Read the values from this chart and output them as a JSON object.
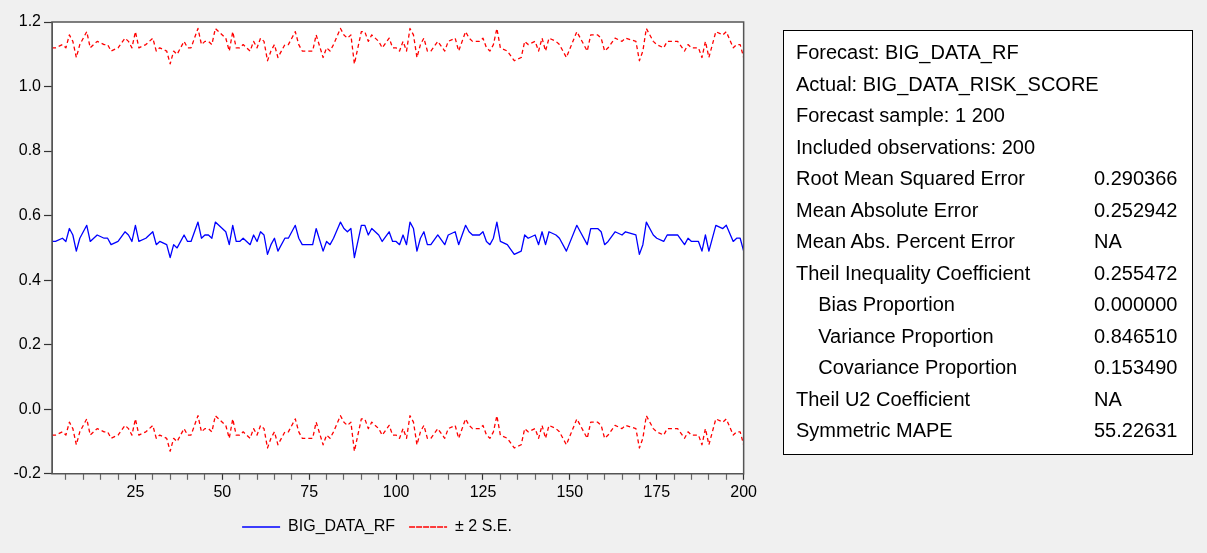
{
  "chart_data": [
    {
      "type": "line",
      "x": [
        1,
        2,
        4,
        5,
        6,
        7,
        8,
        9,
        11,
        12,
        13,
        14,
        16,
        17,
        18,
        20,
        22,
        23,
        24,
        25,
        26,
        28,
        30,
        31,
        32,
        34,
        35,
        36,
        37,
        39,
        40,
        41,
        43,
        44,
        45,
        46,
        47,
        48,
        50,
        51,
        52,
        53,
        54,
        55,
        56,
        58,
        59,
        60,
        61,
        62,
        63,
        64,
        65,
        66,
        68,
        69,
        71,
        72,
        73,
        76,
        77,
        79,
        80,
        81,
        82,
        84,
        85,
        86,
        87,
        88,
        90,
        91,
        92,
        93,
        95,
        96,
        98,
        99,
        100,
        101,
        102,
        103,
        104,
        105,
        106,
        107,
        108,
        109,
        110,
        112,
        114,
        115,
        117,
        118,
        120,
        121,
        122,
        123,
        124,
        125,
        126,
        127,
        128,
        129,
        130,
        132,
        134,
        136,
        137,
        138,
        140,
        141,
        142,
        143,
        144,
        146,
        147,
        149,
        152,
        153,
        155,
        156,
        157,
        158,
        159,
        160,
        161,
        163,
        165,
        166,
        169,
        170,
        171,
        172,
        174,
        175,
        177,
        178,
        180,
        181,
        183,
        184,
        185,
        187,
        188,
        189,
        190,
        192,
        194,
        195,
        197,
        198,
        199,
        200
      ],
      "series": [
        {
          "name": "BIG_DATA_RF",
          "color": "#0000ff",
          "line_style": "solid",
          "values": [
            0.52,
            0.52,
            0.53,
            0.52,
            0.56,
            0.54,
            0.49,
            0.53,
            0.57,
            0.52,
            0.53,
            0.54,
            0.53,
            0.53,
            0.51,
            0.52,
            0.55,
            0.54,
            0.52,
            0.57,
            0.52,
            0.53,
            0.55,
            0.51,
            0.52,
            0.51,
            0.47,
            0.51,
            0.5,
            0.54,
            0.52,
            0.52,
            0.58,
            0.53,
            0.54,
            0.54,
            0.53,
            0.58,
            0.56,
            0.55,
            0.51,
            0.57,
            0.52,
            0.52,
            0.53,
            0.51,
            0.54,
            0.52,
            0.55,
            0.54,
            0.48,
            0.51,
            0.53,
            0.49,
            0.53,
            0.53,
            0.57,
            0.53,
            0.51,
            0.51,
            0.56,
            0.49,
            0.52,
            0.51,
            0.53,
            0.58,
            0.56,
            0.55,
            0.56,
            0.47,
            0.57,
            0.57,
            0.54,
            0.56,
            0.54,
            0.52,
            0.55,
            0.52,
            0.52,
            0.51,
            0.54,
            0.51,
            0.58,
            0.56,
            0.49,
            0.53,
            0.55,
            0.51,
            0.51,
            0.54,
            0.51,
            0.54,
            0.55,
            0.51,
            0.57,
            0.55,
            0.54,
            0.54,
            0.54,
            0.55,
            0.52,
            0.51,
            0.53,
            0.58,
            0.52,
            0.51,
            0.48,
            0.49,
            0.54,
            0.53,
            0.54,
            0.51,
            0.55,
            0.51,
            0.55,
            0.54,
            0.53,
            0.49,
            0.57,
            0.55,
            0.51,
            0.56,
            0.56,
            0.56,
            0.55,
            0.51,
            0.52,
            0.55,
            0.54,
            0.55,
            0.54,
            0.48,
            0.51,
            0.58,
            0.54,
            0.53,
            0.52,
            0.54,
            0.54,
            0.54,
            0.51,
            0.53,
            0.52,
            0.52,
            0.49,
            0.54,
            0.49,
            0.57,
            0.56,
            0.57,
            0.52,
            0.53,
            0.53,
            0.49
          ]
        },
        {
          "name": "± 2 S.E.",
          "color": "#ff0000",
          "line_style": "dashed",
          "values": [
            1.12,
            1.12,
            1.13,
            1.12,
            1.16,
            1.14,
            1.09,
            1.13,
            1.17,
            1.12,
            1.13,
            1.14,
            1.13,
            1.13,
            1.11,
            1.12,
            1.15,
            1.14,
            1.12,
            1.17,
            1.12,
            1.13,
            1.15,
            1.11,
            1.12,
            1.11,
            1.07,
            1.11,
            1.1,
            1.14,
            1.12,
            1.12,
            1.18,
            1.13,
            1.14,
            1.14,
            1.13,
            1.18,
            1.16,
            1.15,
            1.11,
            1.17,
            1.12,
            1.12,
            1.13,
            1.11,
            1.14,
            1.12,
            1.15,
            1.14,
            1.08,
            1.11,
            1.13,
            1.09,
            1.13,
            1.13,
            1.17,
            1.13,
            1.11,
            1.11,
            1.16,
            1.09,
            1.12,
            1.11,
            1.13,
            1.18,
            1.16,
            1.15,
            1.16,
            1.07,
            1.17,
            1.17,
            1.14,
            1.16,
            1.14,
            1.12,
            1.15,
            1.12,
            1.12,
            1.11,
            1.14,
            1.11,
            1.18,
            1.16,
            1.09,
            1.13,
            1.15,
            1.11,
            1.11,
            1.14,
            1.11,
            1.14,
            1.15,
            1.11,
            1.17,
            1.15,
            1.14,
            1.14,
            1.14,
            1.15,
            1.12,
            1.11,
            1.13,
            1.18,
            1.12,
            1.11,
            1.08,
            1.09,
            1.14,
            1.13,
            1.14,
            1.11,
            1.15,
            1.11,
            1.15,
            1.14,
            1.13,
            1.09,
            1.17,
            1.15,
            1.11,
            1.16,
            1.16,
            1.16,
            1.15,
            1.11,
            1.12,
            1.15,
            1.14,
            1.15,
            1.14,
            1.08,
            1.11,
            1.18,
            1.14,
            1.13,
            1.12,
            1.14,
            1.14,
            1.14,
            1.11,
            1.13,
            1.12,
            1.12,
            1.09,
            1.14,
            1.09,
            1.17,
            1.16,
            1.17,
            1.12,
            1.13,
            1.13,
            1.09
          ]
        },
        {
          "color": "#ff0000",
          "line_style": "dashed",
          "values": [
            -0.08,
            -0.08,
            -0.07,
            -0.08,
            -0.04,
            -0.06,
            -0.11,
            -0.07,
            -0.03,
            -0.08,
            -0.07,
            -0.06,
            -0.07,
            -0.07,
            -0.09,
            -0.08,
            -0.05,
            -0.06,
            -0.08,
            -0.03,
            -0.08,
            -0.07,
            -0.05,
            -0.09,
            -0.08,
            -0.09,
            -0.13,
            -0.09,
            -0.1,
            -0.06,
            -0.08,
            -0.08,
            -0.02,
            -0.07,
            -0.06,
            -0.06,
            -0.07,
            -0.02,
            -0.04,
            -0.05,
            -0.09,
            -0.03,
            -0.08,
            -0.08,
            -0.07,
            -0.09,
            -0.06,
            -0.08,
            -0.05,
            -0.06,
            -0.12,
            -0.09,
            -0.07,
            -0.11,
            -0.07,
            -0.07,
            -0.03,
            -0.07,
            -0.09,
            -0.09,
            -0.04,
            -0.11,
            -0.08,
            -0.09,
            -0.07,
            -0.02,
            -0.04,
            -0.05,
            -0.04,
            -0.13,
            -0.03,
            -0.03,
            -0.06,
            -0.04,
            -0.06,
            -0.08,
            -0.05,
            -0.08,
            -0.08,
            -0.09,
            -0.06,
            -0.09,
            -0.02,
            -0.04,
            -0.11,
            -0.07,
            -0.05,
            -0.09,
            -0.09,
            -0.06,
            -0.09,
            -0.06,
            -0.05,
            -0.09,
            -0.03,
            -0.05,
            -0.06,
            -0.06,
            -0.06,
            -0.05,
            -0.08,
            -0.09,
            -0.07,
            -0.02,
            -0.08,
            -0.09,
            -0.12,
            -0.11,
            -0.06,
            -0.07,
            -0.06,
            -0.09,
            -0.05,
            -0.09,
            -0.05,
            -0.06,
            -0.07,
            -0.11,
            -0.03,
            -0.05,
            -0.09,
            -0.04,
            -0.04,
            -0.04,
            -0.05,
            -0.09,
            -0.08,
            -0.05,
            -0.06,
            -0.05,
            -0.06,
            -0.12,
            -0.09,
            -0.02,
            -0.06,
            -0.07,
            -0.08,
            -0.06,
            -0.06,
            -0.06,
            -0.09,
            -0.07,
            -0.08,
            -0.08,
            -0.11,
            -0.06,
            -0.11,
            -0.03,
            -0.04,
            -0.03,
            -0.08,
            -0.07,
            -0.07,
            -0.11
          ]
        }
      ],
      "xlim": [
        1,
        200
      ],
      "xticks": [
        {
          "value": 5,
          "label": null
        },
        {
          "value": 10,
          "label": null
        },
        {
          "value": 15,
          "label": null
        },
        {
          "value": 20,
          "label": null
        },
        25,
        {
          "value": 30,
          "label": null
        },
        {
          "value": 35,
          "label": null
        },
        {
          "value": 40,
          "label": null
        },
        {
          "value": 45,
          "label": null
        },
        50,
        {
          "value": 55,
          "label": null
        },
        {
          "value": 60,
          "label": null
        },
        {
          "value": 65,
          "label": null
        },
        {
          "value": 70,
          "label": null
        },
        75,
        {
          "value": 80,
          "label": null
        },
        {
          "value": 85,
          "label": null
        },
        {
          "value": 90,
          "label": null
        },
        {
          "value": 95,
          "label": null
        },
        100,
        {
          "value": 105,
          "label": null
        },
        {
          "value": 110,
          "label": null
        },
        {
          "value": 115,
          "label": null
        },
        {
          "value": 120,
          "label": null
        },
        125,
        {
          "value": 130,
          "label": null
        },
        {
          "value": 135,
          "label": null
        },
        {
          "value": 140,
          "label": null
        },
        {
          "value": 145,
          "label": null
        },
        150,
        {
          "value": 155,
          "label": null
        },
        {
          "value": 160,
          "label": null
        },
        {
          "value": 165,
          "label": null
        },
        {
          "value": 170,
          "label": null
        },
        175,
        {
          "value": 180,
          "label": null
        },
        {
          "value": 185,
          "label": null
        },
        {
          "value": 190,
          "label": null
        },
        {
          "value": 195,
          "label": null
        },
        200
      ],
      "ylim": [
        -0.2,
        1.2
      ],
      "yticks": [
        {
          "value": -0.2,
          "label": "-0.2"
        },
        {
          "value": 0,
          "label": "0.0"
        },
        {
          "value": 0.2,
          "label": "0.2"
        },
        {
          "value": 0.4,
          "label": "0.4"
        },
        {
          "value": 0.6,
          "label": "0.6"
        },
        {
          "value": 0.8,
          "label": "0.8"
        },
        {
          "value": 1,
          "label": "1.0"
        },
        {
          "value": 1.2,
          "label": "1.2"
        }
      ],
      "grid": false,
      "legend": "bottom",
      "marker": "none"
    },
    {
      "type": "other",
      "annotations": [
        "Forecast: BIG_DATA_RF",
        "Actual: BIG_DATA_RISK_SCORE",
        "Forecast sample: 1 200",
        "Included observations: 200"
      ],
      "categories": [
        "Root Mean Squared Error",
        "Mean Absolute Error",
        "Mean Abs. Percent Error",
        "Theil Inequality Coefficient",
        "    Bias Proportion",
        "    Variance Proportion",
        "    Covariance Proportion",
        "Theil U2 Coefficient",
        "Symmetric MAPE"
      ],
      "value_labels": [
        "0.290366",
        "0.252942",
        "NA",
        "0.255472",
        "0.000000",
        "0.846510",
        "0.153490",
        "NA",
        "55.22631"
      ]
    }
  ]
}
